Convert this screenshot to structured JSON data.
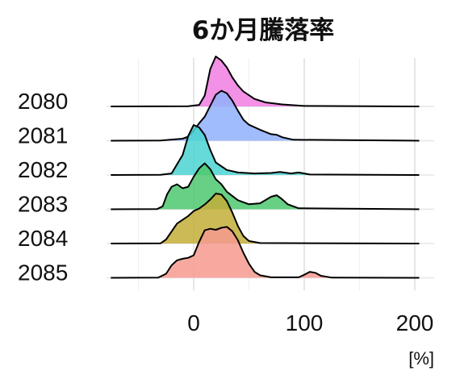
{
  "chart_data": {
    "type": "ridgeline",
    "title": "6か月騰落率",
    "xlabel": "[%]",
    "ylabel": "",
    "xlim": [
      -80,
      205
    ],
    "x_ticks": [
      0,
      100,
      200
    ],
    "grid": true,
    "categories": [
      "2080",
      "2081",
      "2082",
      "2083",
      "2084",
      "2085"
    ],
    "series": [
      {
        "color": "#f17ee3",
        "points": [
          [
            -75,
            0
          ],
          [
            -5,
            0.004
          ],
          [
            5,
            0.03
          ],
          [
            10,
            0.22
          ],
          [
            15,
            0.75
          ],
          [
            20,
            1.0
          ],
          [
            25,
            0.92
          ],
          [
            30,
            0.78
          ],
          [
            35,
            0.58
          ],
          [
            40,
            0.42
          ],
          [
            45,
            0.3
          ],
          [
            55,
            0.15
          ],
          [
            65,
            0.08
          ],
          [
            80,
            0.04
          ],
          [
            100,
            0.01
          ],
          [
            204,
            0
          ]
        ]
      },
      {
        "color": "#8fb0fb",
        "points": [
          [
            -75,
            0
          ],
          [
            -30,
            0.004
          ],
          [
            -10,
            0.04
          ],
          [
            -5,
            0.08
          ],
          [
            0,
            0.2
          ],
          [
            5,
            0.35
          ],
          [
            10,
            0.48
          ],
          [
            15,
            0.7
          ],
          [
            20,
            0.92
          ],
          [
            25,
            1.0
          ],
          [
            30,
            0.95
          ],
          [
            35,
            0.8
          ],
          [
            40,
            0.6
          ],
          [
            45,
            0.42
          ],
          [
            50,
            0.32
          ],
          [
            60,
            0.22
          ],
          [
            70,
            0.13
          ],
          [
            75,
            0.12
          ],
          [
            80,
            0.07
          ],
          [
            90,
            0.02
          ],
          [
            204,
            0
          ]
        ]
      },
      {
        "color": "#4bd3d1",
        "points": [
          [
            -75,
            0
          ],
          [
            -30,
            0.004
          ],
          [
            -20,
            0.03
          ],
          [
            -10,
            0.4
          ],
          [
            -5,
            0.78
          ],
          [
            0,
            1.0
          ],
          [
            5,
            0.95
          ],
          [
            10,
            0.8
          ],
          [
            15,
            0.5
          ],
          [
            20,
            0.25
          ],
          [
            30,
            0.1
          ],
          [
            40,
            0.05
          ],
          [
            55,
            0.03
          ],
          [
            70,
            0.04
          ],
          [
            78,
            0.06
          ],
          [
            88,
            0.03
          ],
          [
            95,
            0.05
          ],
          [
            105,
            0.01
          ],
          [
            204,
            0
          ]
        ]
      },
      {
        "color": "#4dc86e",
        "points": [
          [
            -75,
            0
          ],
          [
            -33,
            0.005
          ],
          [
            -28,
            0.06
          ],
          [
            -24,
            0.3
          ],
          [
            -20,
            0.45
          ],
          [
            -15,
            0.5
          ],
          [
            -10,
            0.42
          ],
          [
            -5,
            0.45
          ],
          [
            0,
            0.65
          ],
          [
            5,
            0.82
          ],
          [
            10,
            0.92
          ],
          [
            15,
            0.8
          ],
          [
            20,
            0.6
          ],
          [
            25,
            0.5
          ],
          [
            30,
            0.35
          ],
          [
            40,
            0.18
          ],
          [
            50,
            0.1
          ],
          [
            60,
            0.12
          ],
          [
            70,
            0.25
          ],
          [
            75,
            0.28
          ],
          [
            80,
            0.2
          ],
          [
            85,
            0.1
          ],
          [
            95,
            0.02
          ],
          [
            204,
            0
          ]
        ]
      },
      {
        "color": "#c3ae3a",
        "points": [
          [
            -75,
            0
          ],
          [
            -30,
            0.004
          ],
          [
            -25,
            0.08
          ],
          [
            -15,
            0.4
          ],
          [
            -5,
            0.55
          ],
          [
            0,
            0.65
          ],
          [
            5,
            0.7
          ],
          [
            10,
            0.78
          ],
          [
            15,
            0.88
          ],
          [
            20,
            1.0
          ],
          [
            25,
            0.98
          ],
          [
            30,
            0.85
          ],
          [
            35,
            0.62
          ],
          [
            40,
            0.35
          ],
          [
            45,
            0.15
          ],
          [
            50,
            0.05
          ],
          [
            60,
            0.01
          ],
          [
            204,
            0
          ]
        ]
      },
      {
        "color": "#f69a8f",
        "points": [
          [
            -75,
            0
          ],
          [
            -32,
            0.005
          ],
          [
            -25,
            0.08
          ],
          [
            -20,
            0.25
          ],
          [
            -15,
            0.35
          ],
          [
            -10,
            0.38
          ],
          [
            -5,
            0.4
          ],
          [
            0,
            0.45
          ],
          [
            5,
            0.72
          ],
          [
            10,
            0.95
          ],
          [
            15,
            0.98
          ],
          [
            20,
            0.96
          ],
          [
            25,
            1.0
          ],
          [
            30,
            1.02
          ],
          [
            35,
            0.93
          ],
          [
            40,
            0.75
          ],
          [
            45,
            0.5
          ],
          [
            50,
            0.28
          ],
          [
            55,
            0.12
          ],
          [
            60,
            0.05
          ],
          [
            70,
            0.01
          ],
          [
            95,
            0.01
          ],
          [
            100,
            0.06
          ],
          [
            105,
            0.12
          ],
          [
            110,
            0.1
          ],
          [
            115,
            0.04
          ],
          [
            125,
            0.004
          ],
          [
            204,
            0
          ]
        ]
      }
    ]
  }
}
